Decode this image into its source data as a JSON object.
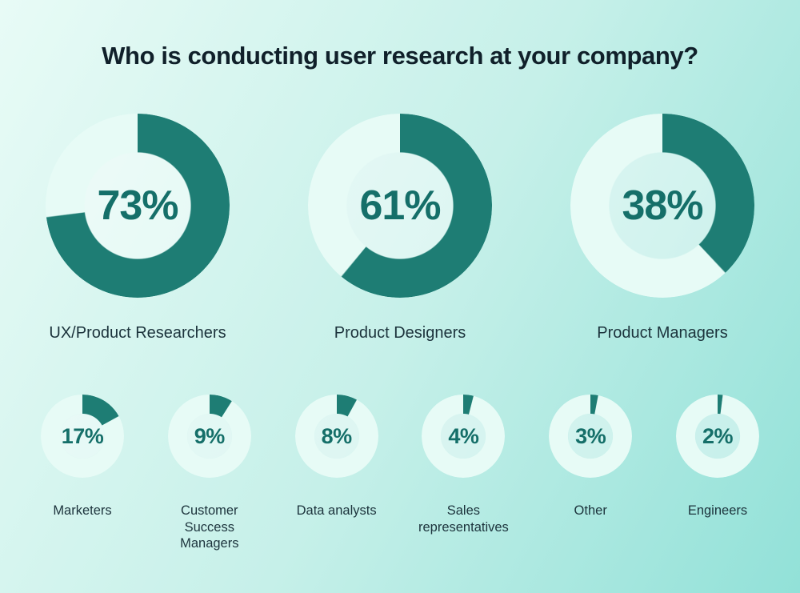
{
  "title": "Who is conducting user research at your company?",
  "colors": {
    "donut_fill": "#1E7D74",
    "donut_track": "#E7FBF6",
    "value_text": "#156F69",
    "label_text": "#1C333C",
    "title_text": "#10202A",
    "background_gradient": [
      "#E8FBF6",
      "#C6F0E9",
      "#92E1D8"
    ]
  },
  "chart_data": {
    "type": "pie",
    "subtype": "donut-small-multiples",
    "title": "Who is conducting user research at your company?",
    "units": "%",
    "start_angle": "top",
    "direction": "clockwise",
    "legend_position": "below-each-donut",
    "groups": [
      {
        "size": "large",
        "items": [
          {
            "label": "UX/Product Researchers",
            "value": 73,
            "display": "73%"
          },
          {
            "label": "Product Designers",
            "value": 61,
            "display": "61%"
          },
          {
            "label": "Product Managers",
            "value": 38,
            "display": "38%"
          }
        ]
      },
      {
        "size": "small",
        "items": [
          {
            "label": "Marketers",
            "value": 17,
            "display": "17%"
          },
          {
            "label": "Customer Success Managers",
            "value": 9,
            "display": "9%"
          },
          {
            "label": "Data analysts",
            "value": 8,
            "display": "8%"
          },
          {
            "label": "Sales representatives",
            "value": 4,
            "display": "4%"
          },
          {
            "label": "Other",
            "value": 3,
            "display": "3%"
          },
          {
            "label": "Engineers",
            "value": 2,
            "display": "2%"
          }
        ]
      }
    ]
  }
}
